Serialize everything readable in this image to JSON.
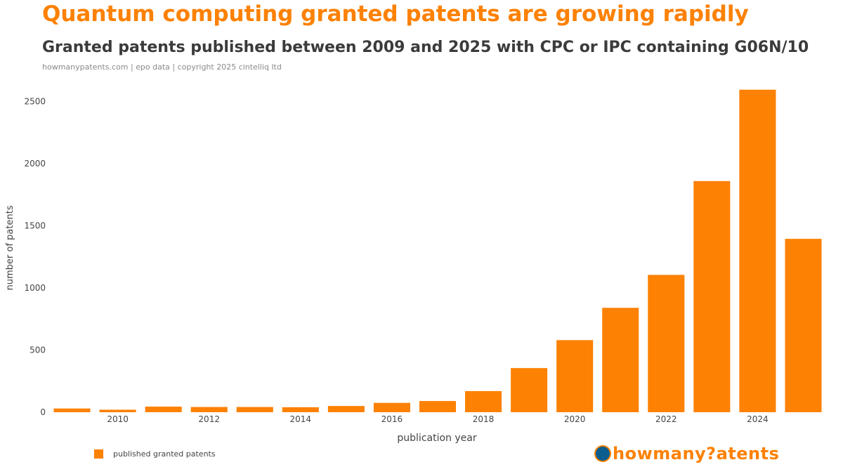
{
  "header": {
    "title": "Quantum computing granted patents are growing rapidly",
    "subtitle": "Granted patents published between 2009 and 2025 with CPC or IPC containing G06N/10",
    "source": "howmanypatents.com | epo data | copyright 2025 cintelliq ltd"
  },
  "legend": {
    "label": "published granted patents"
  },
  "logo": {
    "text": "howmany?atents"
  },
  "colors": {
    "bar": "#fd8103",
    "axis_text": "#444444"
  },
  "chart_data": {
    "type": "bar",
    "x": [
      2009,
      2010,
      2011,
      2012,
      2013,
      2014,
      2015,
      2016,
      2017,
      2018,
      2019,
      2020,
      2021,
      2022,
      2023,
      2024,
      2025
    ],
    "values": [
      30,
      20,
      45,
      42,
      42,
      40,
      50,
      75,
      90,
      170,
      355,
      580,
      840,
      1105,
      1860,
      2595,
      1395
    ],
    "xticks": [
      2010,
      2012,
      2014,
      2016,
      2018,
      2020,
      2022,
      2024
    ],
    "yticks": [
      0,
      500,
      1000,
      1500,
      2000,
      2500
    ],
    "ylim": [
      0,
      2650
    ],
    "xlabel": "publication year",
    "ylabel": "number of patents",
    "series": [
      {
        "name": "published granted patents"
      }
    ],
    "grid": false,
    "legend_position": "bottom-left"
  }
}
